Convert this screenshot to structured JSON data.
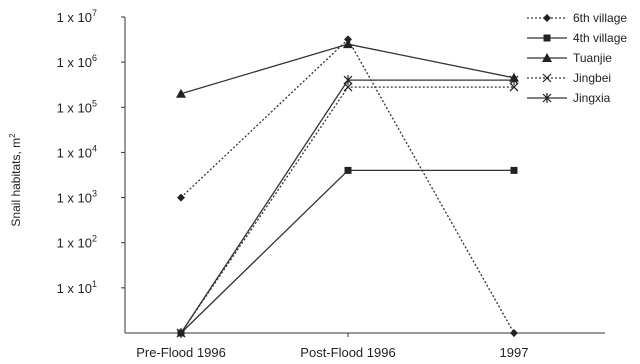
{
  "chart_data": {
    "type": "line",
    "title": "",
    "xlabel": "",
    "ylabel": "Snail habitats, m",
    "ylabel_sup": "2",
    "y_scale": "log",
    "ylim": [
      1,
      10000000
    ],
    "categories": [
      "Pre-Flood 1996",
      "Post-Flood 1996",
      "1997"
    ],
    "y_ticks": [
      {
        "value": 10,
        "label": "1 x 10",
        "exp": "1"
      },
      {
        "value": 100,
        "label": "1 x 10",
        "exp": "2"
      },
      {
        "value": 1000,
        "label": "1 x 10",
        "exp": "3"
      },
      {
        "value": 10000,
        "label": "1 x 10",
        "exp": "4"
      },
      {
        "value": 100000,
        "label": "1 x 10",
        "exp": "5"
      },
      {
        "value": 1000000,
        "label": "1 x 10",
        "exp": "6"
      },
      {
        "value": 10000000,
        "label": "1 x 10",
        "exp": "7"
      }
    ],
    "legend_position": "top-right",
    "grid": false,
    "series": [
      {
        "name": "6th village",
        "values": [
          1000,
          3200000,
          1
        ],
        "marker": "diamond",
        "dash": "dotted"
      },
      {
        "name": "4th village",
        "values": [
          1,
          4000,
          4000
        ],
        "marker": "square",
        "dash": "solid"
      },
      {
        "name": "Tuanjie",
        "values": [
          200000,
          2500000,
          450000
        ],
        "marker": "triangle",
        "dash": "solid"
      },
      {
        "name": "Jingbei",
        "values": [
          1,
          280000,
          280000
        ],
        "marker": "x",
        "dash": "dotted"
      },
      {
        "name": "Jingxia",
        "values": [
          1,
          400000,
          400000
        ],
        "marker": "asterisk",
        "dash": "solid"
      }
    ]
  }
}
